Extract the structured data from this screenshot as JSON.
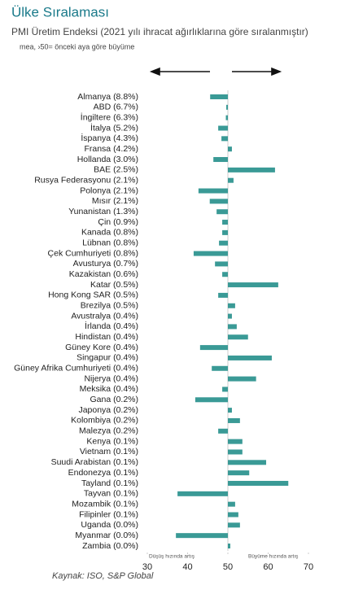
{
  "chart_data": {
    "type": "hbar",
    "title": "Ülke Sıralaması",
    "subtitle": "PMI Üretim Endeksi (2021 yılı ihracat ağırlıklarına göre sıralanmıştır)",
    "note": "mea, ›50= önceki aya göre büyüme",
    "left_label": "Düşüş hızında artış",
    "right_label": "Büyüme hızında artış",
    "source": "Kaynak: ISO, S&P Global",
    "color": "#3a9a96",
    "categories": [
      "Almanya (8.8%)",
      "ABD (6.7%)",
      "İngiltere (6.3%)",
      "İtalya (5.2%)",
      "İspanya (4.3%)",
      "Fransa (4.2%)",
      "Hollanda (3.0%)",
      "BAE (2.5%)",
      "Rusya Federasyonu (2.1%)",
      "Polonya (2.1%)",
      "Mısır (2.1%)",
      "Yunanistan (1.3%)",
      "Çin (0.9%)",
      "Kanada (0.8%)",
      "Lübnan (0.8%)",
      "Çek Cumhuriyeti (0.8%)",
      "Avusturya (0.7%)",
      "Kazakistan (0.6%)",
      "Katar (0.5%)",
      "Hong Kong SAR (0.5%)",
      "Brezilya (0.5%)",
      "Avustralya (0.4%)",
      "İrlanda (0.4%)",
      "Hindistan (0.4%)",
      "Güney Kore (0.4%)",
      "Singapur (0.4%)",
      "Güney Afrika Cumhuriyeti (0.4%)",
      "Nijerya (0.4%)",
      "Meksika (0.4%)",
      "Gana (0.2%)",
      "Japonya (0.2%)",
      "Kolombiya (0.2%)",
      "Malezya (0.2%)",
      "Kenya (0.1%)",
      "Vietnam (0.1%)",
      "Suudi Arabistan (0.1%)",
      "Endonezya (0.1%)",
      "Tayland (0.1%)",
      "Tayvan (0.1%)",
      "Mozambik (0.1%)",
      "Filipinler (0.1%)",
      "Uganda (0.0%)",
      "Myanmar (0.0%)",
      "Zambia (0.0%)"
    ],
    "values": [
      45.6,
      49.6,
      49.5,
      47.6,
      48.4,
      51.0,
      46.4,
      61.7,
      51.4,
      42.7,
      45.5,
      47.2,
      48.6,
      48.6,
      47.8,
      41.5,
      46.8,
      48.6,
      62.5,
      47.6,
      51.8,
      51.0,
      52.2,
      55.0,
      43.1,
      60.9,
      46.0,
      57.0,
      48.6,
      41.9,
      51.0,
      53.0,
      47.6,
      53.6,
      53.6,
      59.5,
      55.3,
      65.0,
      37.5,
      51.8,
      52.6,
      53.0,
      37.1,
      50.6
    ],
    "xlim": [
      30,
      70
    ],
    "xticks": [
      30,
      40,
      50,
      60,
      70
    ]
  }
}
